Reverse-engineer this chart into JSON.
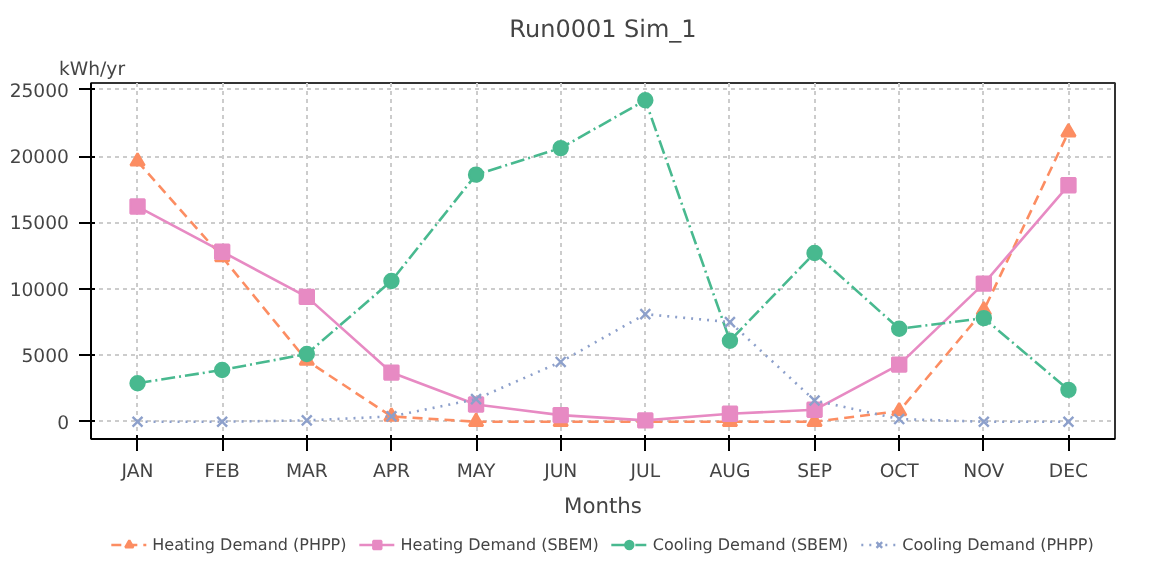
{
  "chart_data": {
    "type": "line",
    "title": "Run0001 Sim_1",
    "xlabel": "Months",
    "ylabel": "kWh/yr",
    "categories": [
      "JAN",
      "FEB",
      "MAR",
      "APR",
      "MAY",
      "JUN",
      "JUL",
      "AUG",
      "SEP",
      "OCT",
      "NOV",
      "DEC"
    ],
    "ylim": [
      -1300,
      25500
    ],
    "yticks": [
      0,
      5000,
      10000,
      15000,
      20000,
      25000
    ],
    "grid": true,
    "legend": "bottom",
    "series": [
      {
        "name": "Heating Demand (PHPP)",
        "color": "#fc8d62",
        "marker": "triangle",
        "line_style": "dashed",
        "values": [
          19600,
          12400,
          4600,
          400,
          0,
          0,
          0,
          0,
          0,
          800,
          8400,
          21800
        ]
      },
      {
        "name": "Heating Demand (SBEM)",
        "color": "#e78ac3",
        "marker": "square",
        "line_style": "solid",
        "values": [
          16200,
          12800,
          9400,
          3700,
          1300,
          500,
          100,
          600,
          900,
          4300,
          10400,
          17800
        ]
      },
      {
        "name": "Cooling Demand (SBEM)",
        "color": "#48b98f",
        "marker": "circle",
        "line_style": "dashdot",
        "values": [
          2900,
          3900,
          5100,
          10600,
          18600,
          20600,
          24200,
          6100,
          12700,
          7000,
          7800,
          2400
        ]
      },
      {
        "name": "Cooling Demand (PHPP)",
        "color": "#8da0cb",
        "marker": "cross",
        "line_style": "dotted",
        "values": [
          0,
          0,
          100,
          400,
          1700,
          4500,
          8100,
          7500,
          1600,
          200,
          0,
          0
        ]
      }
    ]
  }
}
